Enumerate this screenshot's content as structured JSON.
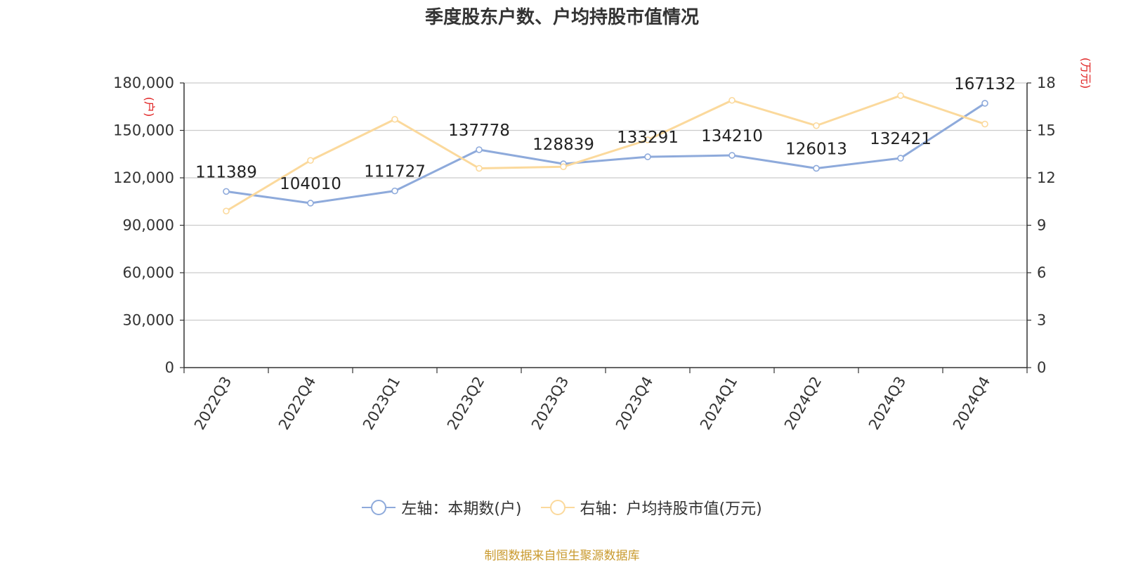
{
  "colors": {
    "left_series": "#8eaadb",
    "right_series": "#fbd99c",
    "axis_unit": "#e02020",
    "source": "#c99a2e",
    "grid": "#cccccc",
    "axis": "#333333"
  },
  "chart_data": {
    "type": "line",
    "title": "季度股东户数、户均持股市值情况",
    "categories": [
      "2022Q3",
      "2022Q4",
      "2023Q1",
      "2023Q2",
      "2023Q3",
      "2023Q4",
      "2024Q1",
      "2024Q2",
      "2024Q3",
      "2024Q4"
    ],
    "y_left": {
      "unit": "(户)",
      "ylim": [
        0,
        180000
      ],
      "ticks": [
        0,
        30000,
        60000,
        90000,
        120000,
        150000,
        180000
      ],
      "tick_labels": [
        "0",
        "30,000",
        "60,000",
        "90,000",
        "120,000",
        "150,000",
        "180,000"
      ]
    },
    "y_right": {
      "unit": "(万元)",
      "ylim": [
        0,
        18
      ],
      "ticks": [
        0,
        3,
        6,
        9,
        12,
        15,
        18
      ],
      "tick_labels": [
        "0",
        "3",
        "6",
        "9",
        "12",
        "15",
        "18"
      ]
    },
    "grid": true,
    "legend_position": "bottom-center",
    "series": [
      {
        "name": "左轴：本期数(户)",
        "axis": "left",
        "values": [
          111389,
          104010,
          111727,
          137778,
          128839,
          133291,
          134210,
          126013,
          132421,
          167132
        ],
        "data_labels": [
          "111389",
          "104010",
          "111727",
          "137778",
          "128839",
          "133291",
          "134210",
          "126013",
          "132421",
          "167132"
        ]
      },
      {
        "name": "右轴：户均持股市值(万元)",
        "axis": "right",
        "values": [
          9.9,
          13.1,
          15.7,
          12.6,
          12.7,
          14.4,
          16.9,
          15.3,
          17.2,
          15.4
        ]
      }
    ]
  },
  "source_text": "制图数据来自恒生聚源数据库"
}
